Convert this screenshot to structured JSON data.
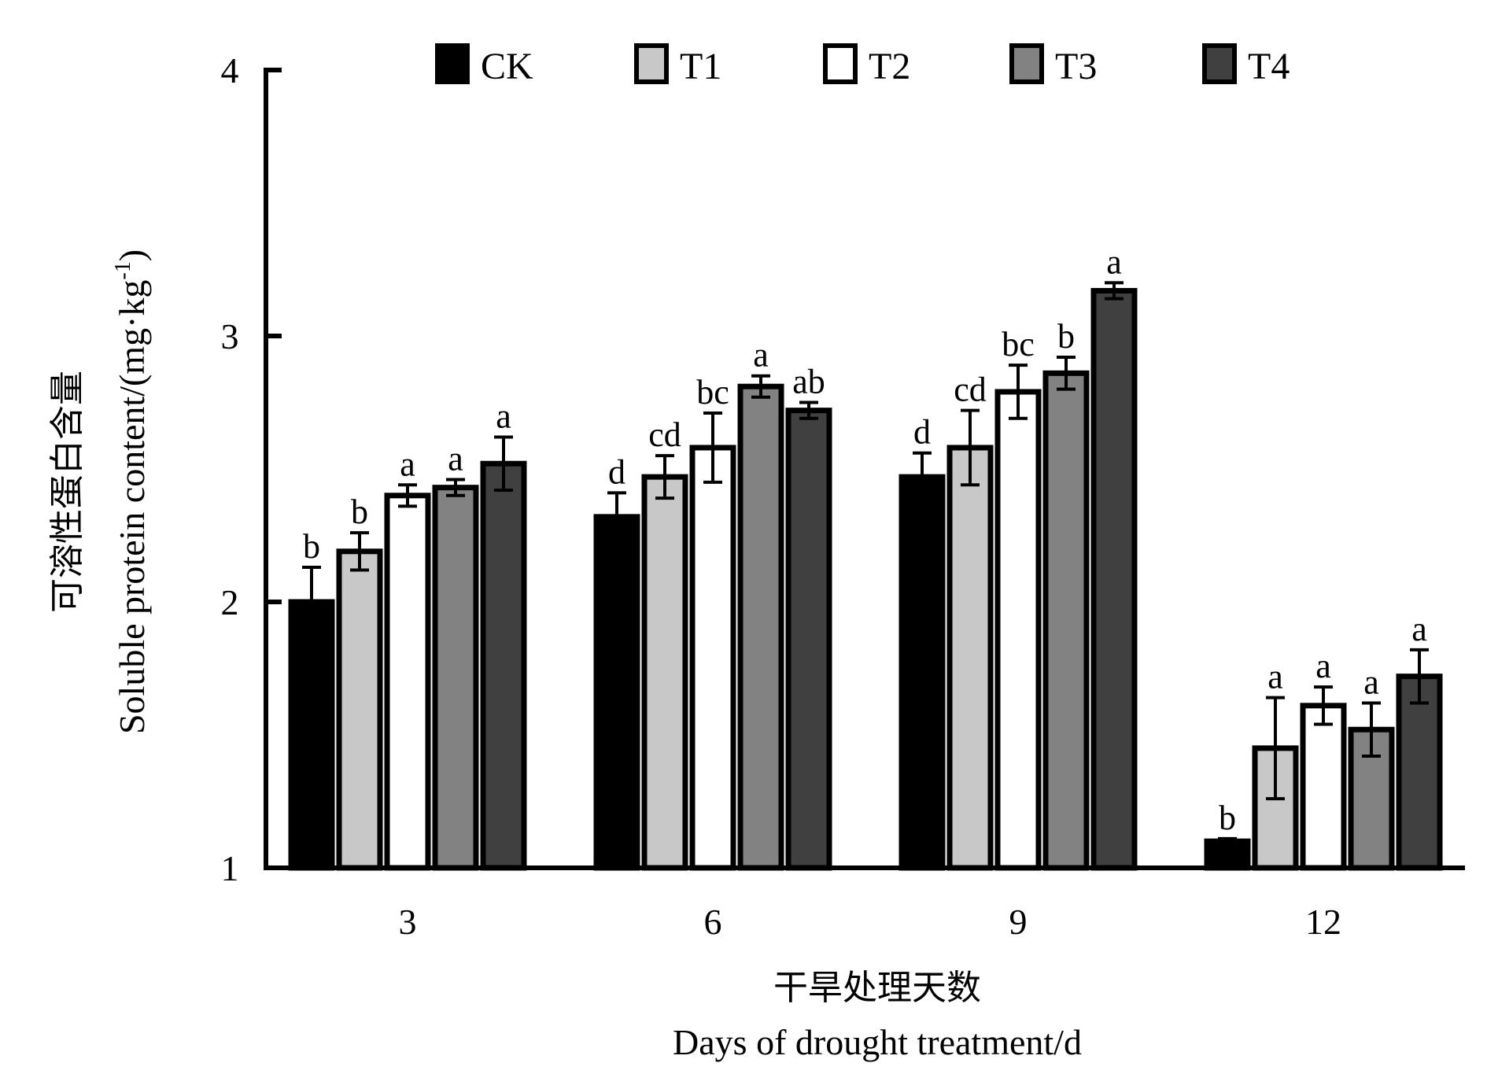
{
  "chart_data": {
    "type": "bar",
    "title": "",
    "xlabel_cn": "干旱处理天数",
    "xlabel": "Days of drought treatment/d",
    "ylabel_cn": "可溶性蛋白含量",
    "ylabel": "Soluble protein content/(mg·kg",
    "ylabel_sup": "-1",
    "ylabel_close": ")",
    "ylim": [
      1,
      4
    ],
    "yticks": [
      1,
      2,
      3,
      4
    ],
    "ytick_labels": [
      "1",
      "2",
      "3",
      "4"
    ],
    "categories": [
      "3",
      "6",
      "9",
      "12"
    ],
    "legend_position": "top",
    "grid": false,
    "series": [
      {
        "name": "CK",
        "color": "#000000",
        "values": [
          2.0,
          2.32,
          2.47,
          1.1
        ],
        "errors": [
          0.13,
          0.09,
          0.09,
          0.01
        ],
        "letters": [
          "b",
          "d",
          "d",
          "b"
        ]
      },
      {
        "name": "T1",
        "color": "#c8c8c8",
        "values": [
          2.19,
          2.47,
          2.58,
          1.45
        ],
        "errors": [
          0.07,
          0.08,
          0.14,
          0.19
        ],
        "letters": [
          "b",
          "cd",
          "cd",
          "a"
        ]
      },
      {
        "name": "T2",
        "color": "#ffffff",
        "values": [
          2.4,
          2.58,
          2.79,
          1.61
        ],
        "errors": [
          0.04,
          0.13,
          0.1,
          0.07
        ],
        "letters": [
          "a",
          "bc",
          "bc",
          "a"
        ]
      },
      {
        "name": "T3",
        "color": "#828282",
        "values": [
          2.43,
          2.81,
          2.86,
          1.52
        ],
        "errors": [
          0.03,
          0.04,
          0.06,
          0.1
        ],
        "letters": [
          "a",
          "a",
          "b",
          "a"
        ]
      },
      {
        "name": "T4",
        "color": "#404040",
        "values": [
          2.52,
          2.72,
          3.17,
          1.72
        ],
        "errors": [
          0.1,
          0.03,
          0.03,
          0.1
        ],
        "letters": [
          "a",
          "ab",
          "a",
          "a"
        ]
      }
    ]
  }
}
